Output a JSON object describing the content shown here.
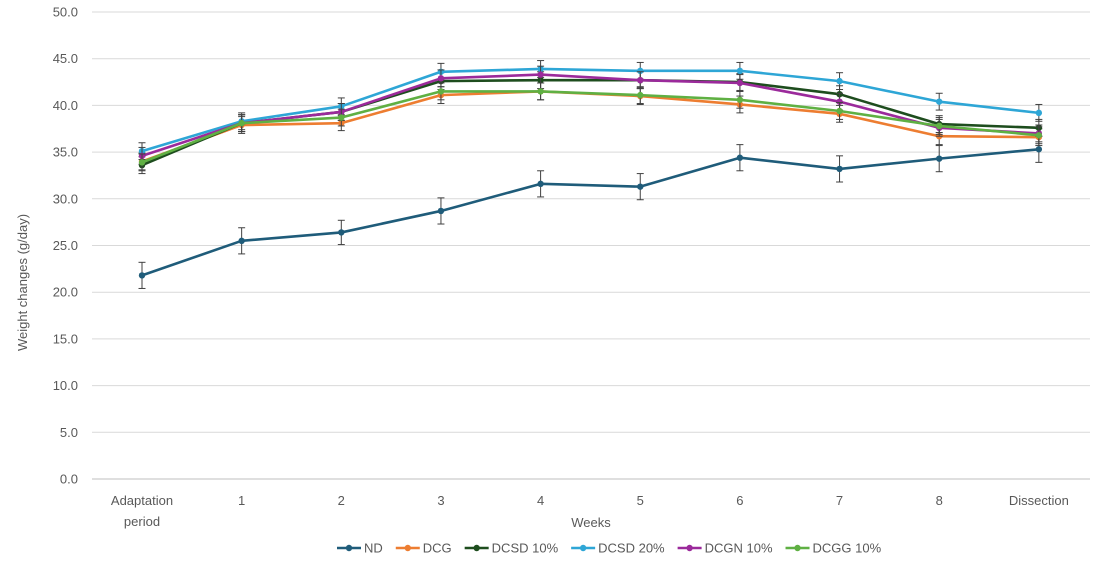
{
  "chart_data": {
    "type": "line",
    "title": "",
    "xlabel": "Weeks",
    "ylabel": "Weight changes  (g/day)",
    "ylim": [
      0,
      50
    ],
    "y_ticks": [
      "0.0",
      "5.0",
      "10.0",
      "15.0",
      "20.0",
      "25.0",
      "30.0",
      "35.0",
      "40.0",
      "45.0",
      "50.0"
    ],
    "grid": "horizontal",
    "legend_position": "bottom",
    "categories": [
      [
        "Adaptation",
        "period"
      ],
      [
        "1"
      ],
      [
        "2"
      ],
      [
        "3"
      ],
      [
        "4"
      ],
      [
        "5"
      ],
      [
        "6"
      ],
      [
        "7"
      ],
      [
        "8"
      ],
      [
        "Dissection"
      ]
    ],
    "series": [
      {
        "name": "ND",
        "color": "#1f5c7a",
        "values": [
          21.8,
          25.5,
          26.4,
          28.7,
          31.6,
          31.3,
          34.4,
          33.2,
          34.3,
          35.3
        ],
        "errors": [
          1.4,
          1.4,
          1.3,
          1.4,
          1.4,
          1.4,
          1.4,
          1.4,
          1.4,
          1.4
        ]
      },
      {
        "name": "DCG",
        "color": "#ed7d31",
        "values": [
          34.0,
          37.9,
          38.1,
          41.1,
          41.5,
          41.0,
          40.1,
          39.1,
          36.7,
          36.6
        ],
        "errors": [
          0.9,
          0.9,
          0.8,
          0.9,
          0.9,
          0.9,
          0.9,
          0.9,
          0.9,
          0.9
        ]
      },
      {
        "name": "DCSD 10%",
        "color": "#1e4d1e",
        "values": [
          33.6,
          38.1,
          39.3,
          42.6,
          42.7,
          42.7,
          42.5,
          41.2,
          38.0,
          37.6
        ],
        "errors": [
          0.9,
          0.9,
          0.9,
          0.9,
          0.9,
          0.9,
          0.9,
          0.9,
          0.9,
          0.9
        ]
      },
      {
        "name": "DCSD 20%",
        "color": "#2ea6d6",
        "values": [
          35.1,
          38.3,
          39.9,
          43.6,
          43.9,
          43.7,
          43.7,
          42.6,
          40.4,
          39.2
        ],
        "errors": [
          0.9,
          0.9,
          0.9,
          0.9,
          0.9,
          0.9,
          0.9,
          0.9,
          0.9,
          0.9
        ]
      },
      {
        "name": "DCGN 10%",
        "color": "#9b2a9b",
        "values": [
          34.6,
          38.1,
          39.3,
          42.9,
          43.3,
          42.7,
          42.4,
          40.4,
          37.6,
          37.0
        ],
        "errors": [
          0.9,
          0.9,
          0.9,
          0.9,
          0.9,
          0.9,
          0.9,
          0.9,
          0.9,
          0.9
        ]
      },
      {
        "name": "DCGG 10%",
        "color": "#5fb043",
        "values": [
          33.9,
          38.1,
          38.7,
          41.5,
          41.5,
          41.1,
          40.6,
          39.4,
          37.8,
          36.8
        ],
        "errors": [
          0.9,
          0.9,
          0.9,
          0.9,
          0.9,
          0.9,
          0.9,
          0.9,
          0.9,
          0.9
        ]
      }
    ]
  }
}
